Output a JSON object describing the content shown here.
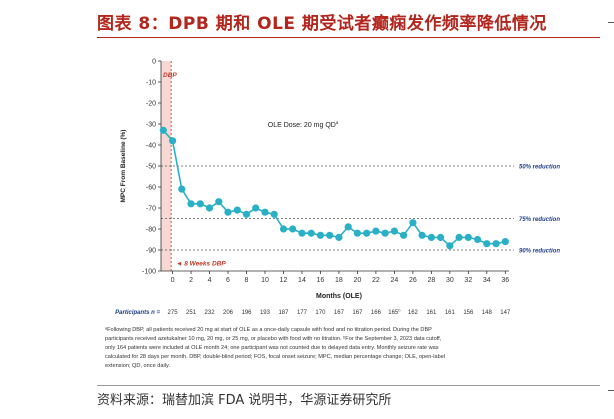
{
  "page": {
    "title": "图表 8：DPB 期和 OLE 期受试者癫痫发作频率降低情况",
    "source": "资料来源：瑞替加滨 FDA 说明书，华源证券研究所",
    "colors": {
      "title": "#b3261e",
      "series": "#2ab0c6",
      "dbp_band": "#f6d9d4",
      "dbp_text": "#c0392b",
      "reference": "#1e3f8a"
    }
  },
  "chart_data": {
    "type": "line",
    "title": "",
    "xlabel": "Months (OLE)",
    "ylabel": "MPC From Baseline (%)",
    "ylim": [
      -100,
      0
    ],
    "yticks": [
      0,
      -10,
      -20,
      -30,
      -40,
      -50,
      -60,
      -70,
      -80,
      -90,
      -100
    ],
    "xticks": [
      0,
      2,
      4,
      6,
      8,
      10,
      12,
      14,
      16,
      18,
      20,
      22,
      24,
      26,
      28,
      30,
      32,
      34,
      36
    ],
    "grid": false,
    "series": [
      {
        "x": [
          -1,
          0,
          1,
          2,
          3,
          4,
          5,
          6,
          7,
          8,
          9,
          10,
          11,
          12,
          13,
          14,
          15,
          16,
          17,
          18,
          19,
          20,
          21,
          22,
          23,
          24,
          25,
          26,
          27,
          28,
          29,
          30,
          31,
          32,
          33,
          34,
          35,
          36
        ],
        "values": [
          -33,
          -38,
          -61,
          -68,
          -68,
          -70,
          -67,
          -72,
          -71,
          -73,
          -70,
          -72,
          -73,
          -80,
          -80,
          -82,
          -82,
          -83,
          -83,
          -84,
          -79,
          -82,
          -82,
          -81,
          -82,
          -81,
          -83,
          -77,
          -83,
          -84,
          -84,
          -88,
          -84,
          -84,
          -85,
          -87,
          -87,
          -86
        ]
      }
    ],
    "reference_lines": [
      {
        "y": -50,
        "label": "50% reduction"
      },
      {
        "y": -75,
        "label": "75% reduction"
      },
      {
        "y": -90,
        "label": "90% reduction"
      }
    ],
    "annotations": {
      "dbp_label": "DBP",
      "weeks_label": "◄ 8 Weeks DBP",
      "dose_label": "OLE Dose: 20 mg QD",
      "dose_sup": "a"
    },
    "participants": {
      "label": "Participants n =",
      "values": [
        "275",
        "251",
        "232",
        "206",
        "196",
        "193",
        "187",
        "177",
        "170",
        "167",
        "167",
        "166",
        "165",
        "162",
        "161",
        "161",
        "156",
        "148",
        "147"
      ],
      "sup_index": 12,
      "sup": "b"
    },
    "footnote": [
      "ᵃFollowing DBP, all patients received 20 mg at start of OLE as a once-daily capsule with food and no titration period. During the DBP",
      "participants received azetukalner 10 mg, 20 mg, or 25 mg, or placebo with food with no titration. ᵇFor the September 3, 2023 data cutoff,",
      "only 164 patients were included at OLE month 24; one participant was not counted due to delayed data entry. Monthly seizure rate was",
      "calculated for 28 days per month. DBP, double-blind period; FOS, focal onset seizure; MPC, median percentage change; OLE, open-label",
      "extension; QD, once daily."
    ]
  }
}
